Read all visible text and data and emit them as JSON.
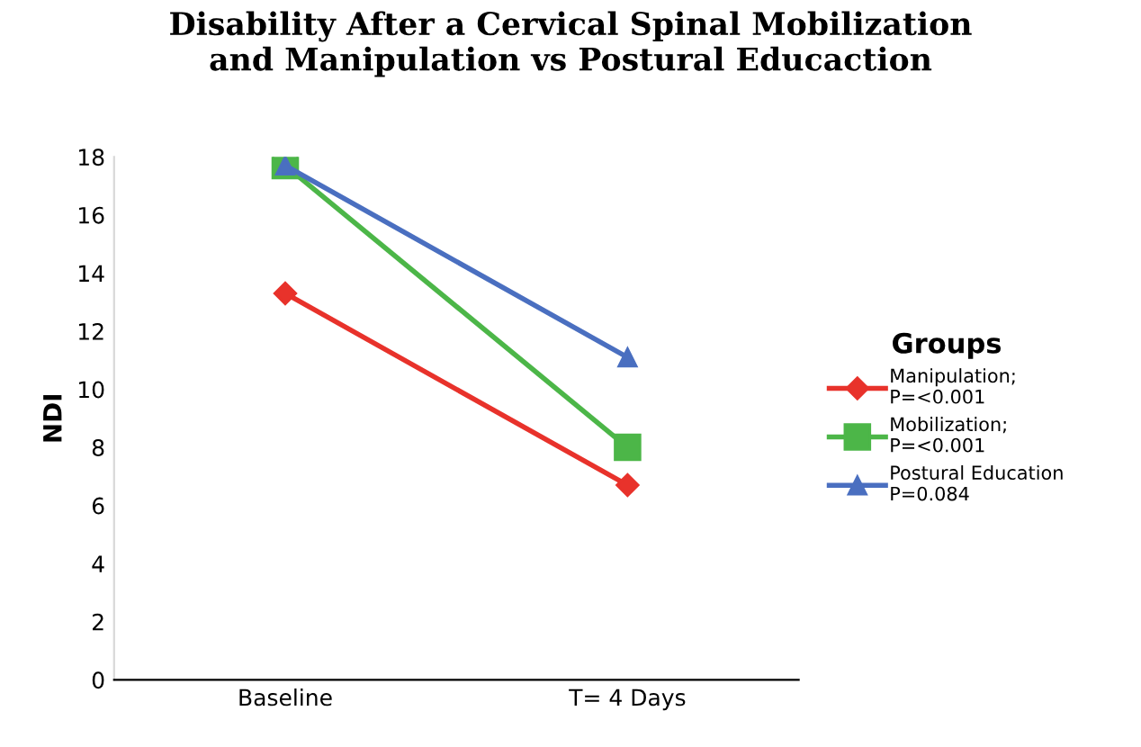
{
  "chart_data": {
    "type": "line",
    "title": "Disability After a Cervical Spinal Mobilization\nand Manipulation vs Postural Educaction",
    "ylabel": "NDI",
    "legend_title": "Groups",
    "legend": "right",
    "categories": [
      "Baseline",
      "T= 4 Days"
    ],
    "ylim": [
      0,
      18
    ],
    "yticks": [
      0,
      2,
      4,
      6,
      8,
      10,
      12,
      14,
      16,
      18
    ],
    "grid": false,
    "series": [
      {
        "name": "Manipulation;\nP=<0.001",
        "color": "#e8322b",
        "marker": "diamond",
        "values": [
          13.3,
          6.7
        ]
      },
      {
        "name": "Mobilization;\nP=<0.001",
        "color": "#4cb648",
        "marker": "square",
        "values": [
          17.7,
          8.0
        ]
      },
      {
        "name": "Postural Education\nP=0.084",
        "color": "#4a6fc0",
        "marker": "triangle",
        "values": [
          17.7,
          11.1
        ]
      }
    ]
  }
}
